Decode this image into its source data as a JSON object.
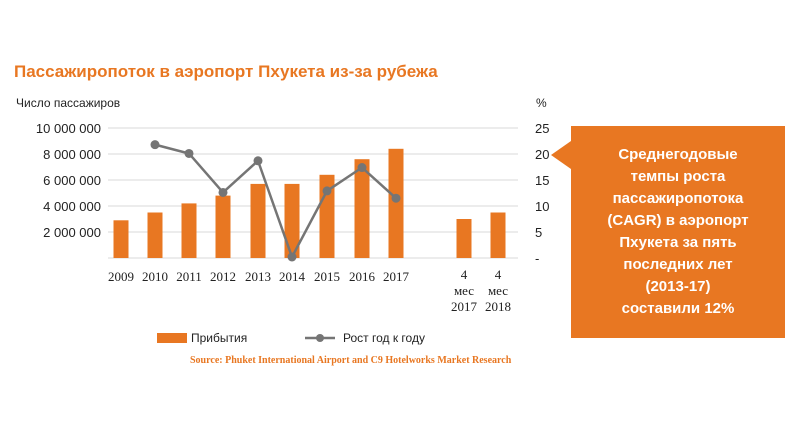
{
  "chart_data": {
    "type": "bar+line",
    "title": "Пассажиропоток в аэропорт Пхукета из-за рубежа",
    "ylabel_left": "Число пассажиров",
    "ylabel_right": "%",
    "left_axis": {
      "ylim": [
        0,
        10000000
      ],
      "ticks": [
        "10 000 000",
        "8 000 000",
        "6 000 000",
        "4 000 000",
        "2 000 000"
      ]
    },
    "right_axis": {
      "ylim": [
        0,
        25
      ],
      "ticks": [
        "25",
        "20",
        "15",
        "10",
        "5",
        "-"
      ]
    },
    "categories": [
      [
        "2009"
      ],
      [
        "2010"
      ],
      [
        "2011"
      ],
      [
        "2012"
      ],
      [
        "2013"
      ],
      [
        "2014"
      ],
      [
        "2015"
      ],
      [
        "2016"
      ],
      [
        "2017"
      ],
      [
        "4",
        "мес",
        "2017"
      ],
      [
        "4",
        "мес",
        "2018"
      ]
    ],
    "series": [
      {
        "name": "Прибытия",
        "type": "bar",
        "axis": "left",
        "color": "#e87722",
        "values": [
          2900000,
          3500000,
          4200000,
          4800000,
          5700000,
          5700000,
          6400000,
          7600000,
          8400000,
          3000000,
          3500000
        ]
      },
      {
        "name": "Рост год к году",
        "type": "line",
        "axis": "right",
        "color": "#757575",
        "values": [
          null,
          21.8,
          20.1,
          12.6,
          18.7,
          0.2,
          12.9,
          17.4,
          11.5,
          null,
          null
        ]
      }
    ],
    "grid": true,
    "legend": "bottom"
  },
  "callout": {
    "text": "Среднегодовые\nтемпы роста\nпассажиропотока\n(CAGR)  в аэропорт\nПхукета за пять\nпоследних лет\n(2013-17)\nсоставили 12%"
  },
  "source": "Source: Phuket International Airport and C9 Hotelworks Market Research"
}
